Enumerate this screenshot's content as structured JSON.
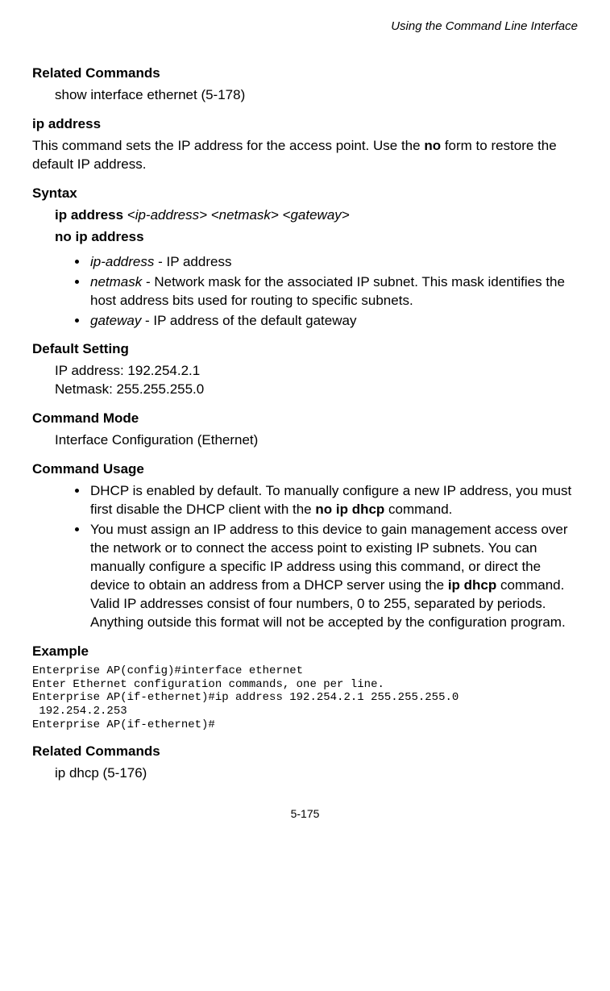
{
  "header": {
    "title": "Using the Command Line Interface"
  },
  "related1": {
    "heading": "Related Commands",
    "text": "show interface ethernet (5-178)"
  },
  "ipaddress": {
    "heading": "ip address",
    "desc_a": "This command sets the IP address for the access point. Use the ",
    "desc_b": "no",
    "desc_c": " form to restore the default IP address."
  },
  "syntax": {
    "heading": "Syntax",
    "line1_a": "ip address ",
    "line1_b": "<ip-address> <netmask> <gateway>",
    "line2": "no ip address",
    "b1_a": "ip-address",
    "b1_b": " - IP address",
    "b2_a": "netmask",
    "b2_b": " - Network mask for the associated IP subnet. This mask identifies the host address bits used for routing to specific subnets.",
    "b3_a": "gateway",
    "b3_b": " - IP address of the default gateway"
  },
  "default": {
    "heading": "Default Setting",
    "l1": "IP address: 192.254.2.1",
    "l2": "Netmask: 255.255.255.0"
  },
  "mode": {
    "heading": "Command Mode",
    "text": "Interface Configuration (Ethernet)"
  },
  "usage": {
    "heading": "Command Usage",
    "b1_a": "DHCP is enabled by default. To manually configure a new IP address, you must first disable the DHCP client with the ",
    "b1_b": "no ip dhcp",
    "b1_c": " command.",
    "b2_a": "You must assign an IP address to this device to gain management access over the network or to connect the access point to existing IP subnets. You can manually configure a specific IP address using this command, or direct the device to obtain an address from a DHCP server using the ",
    "b2_b": "ip dhcp",
    "b2_c": " command. Valid IP addresses consist of four numbers, 0 to 255, separated by periods. Anything outside this format will not be accepted by the configuration program."
  },
  "example": {
    "heading": "Example",
    "code": "Enterprise AP(config)#interface ethernet\nEnter Ethernet configuration commands, one per line.\nEnterprise AP(if-ethernet)#ip address 192.254.2.1 255.255.255.0 \n 192.254.2.253\nEnterprise AP(if-ethernet)#"
  },
  "related2": {
    "heading": "Related Commands",
    "text": "ip dhcp (5-176)"
  },
  "footer": {
    "pagenum": "5-175"
  }
}
